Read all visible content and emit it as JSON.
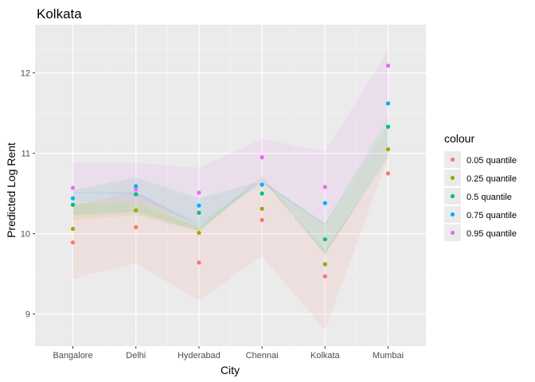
{
  "chart_data": {
    "type": "scatter",
    "title": "Kolkata",
    "xlabel": "City",
    "ylabel": "Predicted Log Rent",
    "categories": [
      "Bangalore",
      "Delhi",
      "Hyderabad",
      "Chennai",
      "Kolkata",
      "Mumbai"
    ],
    "ylim": [
      8.6,
      12.6
    ],
    "yticks": [
      9,
      10,
      11,
      12
    ],
    "grid": true,
    "legend": {
      "title": "colour",
      "position": "right"
    },
    "series": [
      {
        "name": "0.05 quantile",
        "color": "#F8766D",
        "values": [
          9.89,
          10.08,
          9.64,
          10.17,
          9.47,
          10.75
        ],
        "band_low": [
          9.44,
          9.63,
          9.17,
          9.72,
          8.8,
          10.95
        ],
        "band_high": [
          10.34,
          10.53,
          10.1,
          10.62,
          10.12,
          11.35
        ]
      },
      {
        "name": "0.25 quantile",
        "color": "#A3A500",
        "values": [
          10.06,
          10.29,
          10.01,
          10.31,
          9.62,
          11.05
        ],
        "band_low": [
          10.17,
          10.23,
          10.03,
          10.66,
          9.8,
          10.94
        ],
        "band_high": [
          10.38,
          10.4,
          10.08,
          10.72,
          9.74,
          10.96
        ]
      },
      {
        "name": "0.5 quantile",
        "color": "#00BF7D",
        "values": [
          10.36,
          10.49,
          10.26,
          10.5,
          9.93,
          11.33
        ],
        "band_low": [
          10.23,
          10.27,
          10.03,
          10.68,
          9.74,
          10.96
        ],
        "band_high": [
          10.54,
          10.7,
          10.44,
          10.66,
          10.13,
          11.43
        ]
      },
      {
        "name": "0.75 quantile",
        "color": "#00B0F6",
        "values": [
          10.44,
          10.59,
          10.35,
          10.61,
          10.38,
          11.62
        ],
        "band_low": [
          10.5,
          10.48,
          10.1,
          10.63,
          10.1,
          11.4
        ],
        "band_high": [
          10.52,
          10.52,
          10.12,
          10.66,
          10.12,
          11.4
        ]
      },
      {
        "name": "0.95 quantile",
        "color": "#E76BF3",
        "values": [
          10.57,
          10.55,
          10.51,
          10.95,
          10.58,
          12.09
        ],
        "band_low": [
          10.4,
          10.4,
          10.12,
          10.62,
          10.12,
          11.4
        ],
        "band_high": [
          10.88,
          10.88,
          10.82,
          11.18,
          11.02,
          12.28
        ]
      }
    ]
  }
}
